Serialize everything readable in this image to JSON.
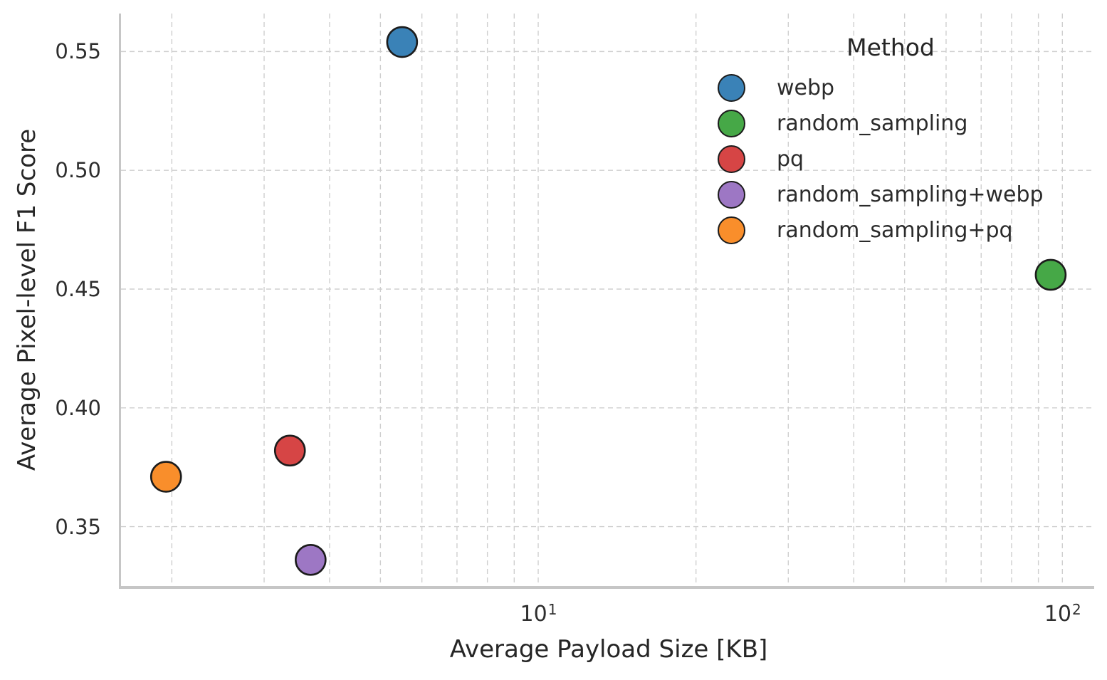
{
  "figure": {
    "background": "#ffffff"
  },
  "chart_data": {
    "type": "scatter",
    "title": "",
    "xlabel": "Average Payload Size [KB]",
    "ylabel": "Average Pixel-level F1 Score",
    "x_scale": "log",
    "xlim": [
      1.6,
      115
    ],
    "ylim": [
      0.325,
      0.566
    ],
    "grid": {
      "enabled": true,
      "style": "dashed",
      "color": "#cfcfcf",
      "x_values": [
        2,
        3,
        4,
        5,
        6,
        7,
        8,
        9,
        10,
        20,
        30,
        40,
        50,
        60,
        70,
        80,
        90,
        100
      ]
    },
    "x_ticks": [
      {
        "value": 10,
        "base": "10",
        "exponent": "1"
      },
      {
        "value": 100,
        "base": "10",
        "exponent": "2"
      }
    ],
    "y_ticks": [
      {
        "value": 0.35,
        "label": "0.35"
      },
      {
        "value": 0.4,
        "label": "0.40"
      },
      {
        "value": 0.45,
        "label": "0.45"
      },
      {
        "value": 0.5,
        "label": "0.50"
      },
      {
        "value": 0.55,
        "label": "0.55"
      }
    ],
    "legend": {
      "title": "Method",
      "position": "upper right"
    },
    "marker": {
      "radius": 21,
      "edge_color": "#1c1c1c",
      "edge_width": 2.6
    },
    "series": [
      {
        "name": "webp",
        "color": "#3A82B7",
        "x": 5.5,
        "y": 0.554
      },
      {
        "name": "random_sampling",
        "color": "#46A847",
        "x": 95,
        "y": 0.456
      },
      {
        "name": "pq",
        "color": "#D64545",
        "x": 3.36,
        "y": 0.382
      },
      {
        "name": "random_sampling+webp",
        "color": "#9D77C4",
        "x": 3.68,
        "y": 0.336
      },
      {
        "name": "random_sampling+pq",
        "color": "#F98E2B",
        "x": 1.95,
        "y": 0.371
      }
    ]
  }
}
